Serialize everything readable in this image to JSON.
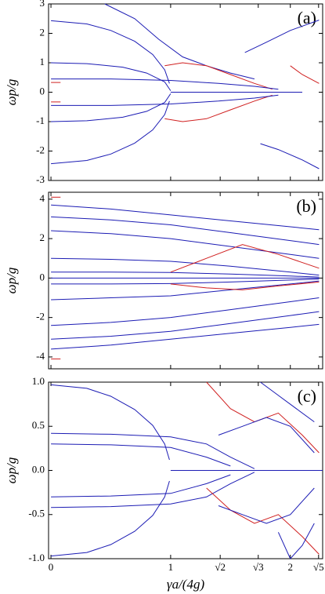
{
  "chart_data": [
    {
      "type": "line",
      "annotation": "(a)",
      "ylabel": "ωp/g",
      "xlim": [
        -0.02,
        2.27
      ],
      "ylim": [
        -3,
        3
      ],
      "yticks": [
        -3,
        -2,
        -1,
        0,
        1,
        2,
        3
      ],
      "series": [
        {
          "color": "#1c1cb4",
          "x": [
            0.45,
            0.7,
            0.9,
            1.1,
            1.3,
            1.5,
            1.7
          ],
          "values": [
            3,
            2.5,
            1.8,
            1.2,
            0.9,
            0.65,
            0.45
          ]
        },
        {
          "color": "#1c1cb4",
          "x": [
            0,
            0.3,
            0.5,
            0.7,
            0.85,
            0.95,
            0.99
          ],
          "values": [
            2.43,
            2.32,
            2.1,
            1.73,
            1.28,
            0.76,
            0.3
          ]
        },
        {
          "color": "#1c1cb4",
          "x": [
            0,
            0.3,
            0.5,
            0.7,
            0.85,
            0.95,
            0.99
          ],
          "values": [
            -2.43,
            -2.32,
            -2.1,
            -1.73,
            -1.28,
            -0.76,
            -0.3
          ]
        },
        {
          "color": "#1c1cb4",
          "x": [
            0,
            0.3,
            0.6,
            0.8,
            0.95,
            1.0
          ],
          "values": [
            1,
            0.97,
            0.85,
            0.65,
            0.35,
            0.05
          ]
        },
        {
          "color": "#1c1cb4",
          "x": [
            0,
            0.3,
            0.6,
            0.8,
            0.95,
            1.0
          ],
          "values": [
            -1,
            -0.97,
            -0.85,
            -0.65,
            -0.35,
            -0.05
          ]
        },
        {
          "color": "#d02020",
          "x": [
            0.95,
            1.1,
            1.3,
            1.5,
            1.7,
            1.85
          ],
          "values": [
            0.9,
            1.0,
            0.9,
            0.6,
            0.3,
            0.1
          ]
        },
        {
          "color": "#d02020",
          "x": [
            0.95,
            1.1,
            1.3,
            1.5,
            1.7,
            1.85
          ],
          "values": [
            -0.9,
            -1.0,
            -0.9,
            -0.6,
            -0.3,
            -0.1
          ]
        },
        {
          "color": "#1c1cb4",
          "x": [
            1.62,
            1.8,
            2.0,
            2.24
          ],
          "values": [
            1.35,
            1.7,
            2.1,
            2.45
          ]
        },
        {
          "color": "#1c1cb4",
          "x": [
            1.75,
            1.9,
            2.1,
            2.24
          ],
          "values": [
            -1.75,
            -1.95,
            -2.3,
            -2.6
          ]
        },
        {
          "color": "#d02020",
          "x": [
            2.0,
            2.1,
            2.24
          ],
          "values": [
            0.9,
            0.6,
            0.3
          ]
        },
        {
          "color": "#1c1cb4",
          "x": [
            1.0,
            2.1
          ],
          "values": [
            0,
            0
          ]
        },
        {
          "color": "#1c1cb4",
          "x": [
            0,
            0.5,
            1.0,
            1.4,
            1.7,
            1.9
          ],
          "values": [
            0.45,
            0.45,
            0.4,
            0.3,
            0.2,
            0.1
          ]
        },
        {
          "color": "#1c1cb4",
          "x": [
            0,
            0.5,
            1.0,
            1.4,
            1.7,
            1.9
          ],
          "values": [
            -0.45,
            -0.45,
            -0.4,
            -0.3,
            -0.2,
            -0.1
          ]
        },
        {
          "color": "#d02020",
          "x": [
            0,
            0.08
          ],
          "values": [
            0.33,
            0.33
          ]
        },
        {
          "color": "#d02020",
          "x": [
            0,
            0.08
          ],
          "values": [
            -0.33,
            -0.33
          ]
        }
      ]
    },
    {
      "type": "line",
      "annotation": "(b)",
      "ylabel": "ωp/g",
      "xlim": [
        -0.02,
        2.27
      ],
      "ylim": [
        -4.6,
        4.35
      ],
      "yticks": [
        -4,
        -2,
        0,
        2,
        4
      ],
      "series": [
        {
          "color": "#1c1cb4",
          "x": [
            0,
            0.5,
            1,
            1.5,
            2,
            2.24
          ],
          "values": [
            3.7,
            3.5,
            3.2,
            2.9,
            2.6,
            2.45
          ]
        },
        {
          "color": "#1c1cb4",
          "x": [
            0,
            0.5,
            1,
            1.5,
            2,
            2.24
          ],
          "values": [
            3.1,
            2.95,
            2.7,
            2.3,
            1.9,
            1.7
          ]
        },
        {
          "color": "#1c1cb4",
          "x": [
            0,
            0.5,
            1,
            1.5,
            2,
            2.24
          ],
          "values": [
            2.4,
            2.25,
            2.0,
            1.6,
            1.2,
            1.0
          ]
        },
        {
          "color": "#1c1cb4",
          "x": [
            0,
            0.5,
            1,
            1.5,
            2,
            2.24
          ],
          "values": [
            1.0,
            0.95,
            0.85,
            0.6,
            0.3,
            0.15
          ]
        },
        {
          "color": "#1c1cb4",
          "x": [
            0,
            0.5,
            1,
            1.5,
            2,
            2.24
          ],
          "values": [
            0.3,
            0.3,
            0.28,
            0.2,
            0.1,
            0.05
          ]
        },
        {
          "color": "#1c1cb4",
          "x": [
            0,
            0.5,
            1,
            1.5,
            2,
            2.24
          ],
          "values": [
            -3.6,
            -3.4,
            -3.1,
            -2.8,
            -2.5,
            -2.35
          ]
        },
        {
          "color": "#1c1cb4",
          "x": [
            0,
            0.5,
            1,
            1.5,
            2,
            2.24
          ],
          "values": [
            -3.1,
            -2.95,
            -2.7,
            -2.3,
            -1.9,
            -1.7
          ]
        },
        {
          "color": "#1c1cb4",
          "x": [
            0,
            0.5,
            1,
            1.5,
            2,
            2.24
          ],
          "values": [
            -2.4,
            -2.25,
            -2.0,
            -1.6,
            -1.2,
            -1.0
          ]
        },
        {
          "color": "#1c1cb4",
          "x": [
            0,
            0.5,
            1,
            1.5,
            2,
            2.24
          ],
          "values": [
            -1.1,
            -1.0,
            -0.9,
            -0.6,
            -0.3,
            -0.15
          ]
        },
        {
          "color": "#1c1cb4",
          "x": [
            0,
            0.5,
            1,
            1.5,
            2,
            2.24
          ],
          "values": [
            -0.3,
            -0.3,
            -0.28,
            -0.2,
            -0.1,
            -0.05
          ]
        },
        {
          "color": "#d02020",
          "x": [
            1.0,
            1.3,
            1.6,
            1.9,
            2.24
          ],
          "values": [
            0.3,
            1.0,
            1.7,
            1.2,
            0.5
          ]
        },
        {
          "color": "#d02020",
          "x": [
            1.0,
            1.3,
            1.6,
            1.9,
            2.24
          ],
          "values": [
            -0.3,
            -0.5,
            -0.6,
            -0.4,
            -0.2
          ]
        },
        {
          "color": "#d02020",
          "x": [
            0,
            0.08
          ],
          "values": [
            4.1,
            4.1
          ]
        },
        {
          "color": "#d02020",
          "x": [
            0,
            0.08
          ],
          "values": [
            -4.1,
            -4.1
          ]
        },
        {
          "color": "#1c1cb4",
          "x": [
            0,
            2.24
          ],
          "values": [
            0,
            0
          ]
        }
      ]
    },
    {
      "type": "line",
      "annotation": "(c)",
      "ylabel": "ωp/g",
      "xlabel": "γa/(4g)",
      "xlim": [
        -0.02,
        2.27
      ],
      "ylim": [
        -1,
        1
      ],
      "yticks": [
        {
          "value": -1,
          "label": "-1.0"
        },
        -0.5,
        {
          "value": 0,
          "label": "0.0"
        },
        0.5,
        {
          "value": 1,
          "label": "1.0"
        }
      ],
      "xticks": [
        0,
        1,
        {
          "value": 1.414,
          "label": "√2"
        },
        {
          "value": 1.732,
          "label": "√3"
        },
        2,
        {
          "value": 2.236,
          "label": "√5"
        }
      ],
      "series": [
        {
          "color": "#1c1cb4",
          "x": [
            0,
            0.3,
            0.5,
            0.7,
            0.85,
            0.95,
            0.99
          ],
          "values": [
            0.97,
            0.93,
            0.84,
            0.69,
            0.51,
            0.3,
            0.12
          ]
        },
        {
          "color": "#1c1cb4",
          "x": [
            0,
            0.3,
            0.5,
            0.7,
            0.85,
            0.95,
            0.99
          ],
          "values": [
            -0.97,
            -0.93,
            -0.84,
            -0.69,
            -0.51,
            -0.3,
            -0.12
          ]
        },
        {
          "color": "#1c1cb4",
          "x": [
            0,
            0.5,
            1.0,
            1.3,
            1.5,
            1.7
          ],
          "values": [
            0.42,
            0.41,
            0.38,
            0.3,
            0.15,
            0.02
          ]
        },
        {
          "color": "#1c1cb4",
          "x": [
            0,
            0.5,
            1.0,
            1.3,
            1.5,
            1.7
          ],
          "values": [
            -0.42,
            -0.41,
            -0.38,
            -0.3,
            -0.15,
            -0.02
          ]
        },
        {
          "color": "#1c1cb4",
          "x": [
            0,
            0.5,
            1.0,
            1.3,
            1.5
          ],
          "values": [
            0.3,
            0.29,
            0.26,
            0.15,
            0.05
          ]
        },
        {
          "color": "#1c1cb4",
          "x": [
            0,
            0.5,
            1.0,
            1.3,
            1.5
          ],
          "values": [
            -0.3,
            -0.29,
            -0.26,
            -0.15,
            -0.05
          ]
        },
        {
          "color": "#d02020",
          "x": [
            1.3,
            1.5,
            1.7,
            1.9,
            2.1,
            2.24
          ],
          "values": [
            1.0,
            0.7,
            0.55,
            0.65,
            0.4,
            0.2
          ]
        },
        {
          "color": "#d02020",
          "x": [
            1.3,
            1.5,
            1.7,
            1.9,
            2.1,
            2.24
          ],
          "values": [
            -0.2,
            -0.45,
            -0.6,
            -0.5,
            -0.75,
            -0.95
          ]
        },
        {
          "color": "#1c1cb4",
          "x": [
            1.4,
            1.6,
            1.8,
            2.0,
            2.2
          ],
          "values": [
            0.4,
            0.5,
            0.6,
            0.5,
            0.2
          ]
        },
        {
          "color": "#1c1cb4",
          "x": [
            1.4,
            1.6,
            1.8,
            2.0,
            2.2
          ],
          "values": [
            -0.4,
            -0.5,
            -0.6,
            -0.5,
            -0.2
          ]
        },
        {
          "color": "#1c1cb4",
          "x": [
            1.75,
            1.9,
            2.05,
            2.2
          ],
          "values": [
            1.0,
            0.85,
            0.7,
            0.55
          ]
        },
        {
          "color": "#1c1cb4",
          "x": [
            1.9,
            2.0,
            2.1,
            2.2
          ],
          "values": [
            -0.7,
            -1.0,
            -0.85,
            -0.6
          ]
        },
        {
          "color": "#1c1cb4",
          "x": [
            1.0,
            2.27
          ],
          "values": [
            0,
            0
          ]
        }
      ]
    }
  ]
}
